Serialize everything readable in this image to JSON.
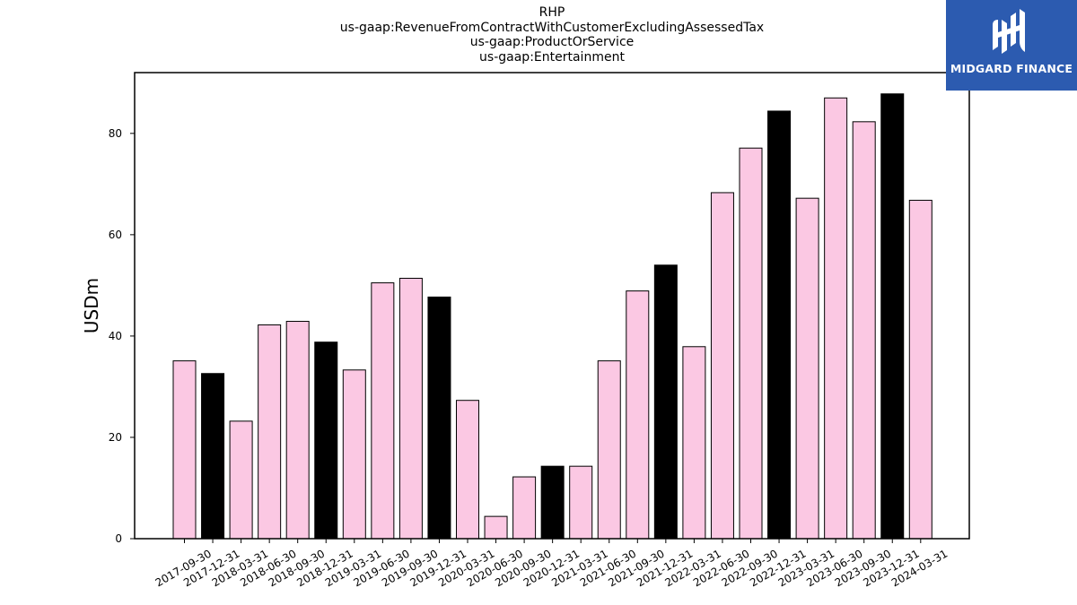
{
  "header": {
    "title_lines": [
      "RHP",
      "us-gaap:RevenueFromContractWithCustomerExcludingAssessedTax",
      "us-gaap:ProductOrService",
      "us-gaap:Entertainment"
    ]
  },
  "logo": {
    "text": "MIDGARD FINANCE",
    "bg_color": "#2c5bb0"
  },
  "chart_data": {
    "type": "bar",
    "title": "RHP\nus-gaap:RevenueFromContractWithCustomerExcludingAssessedTax\nus-gaap:ProductOrService\nus-gaap:Entertainment",
    "ylabel": "USDm",
    "xlabel": "",
    "ylim": [
      0,
      92
    ],
    "yticks": [
      0,
      20,
      40,
      60,
      80
    ],
    "grid": false,
    "categories": [
      "2017-09-30",
      "2017-12-31",
      "2018-03-31",
      "2018-06-30",
      "2018-09-30",
      "2018-12-31",
      "2019-03-31",
      "2019-06-30",
      "2019-09-30",
      "2019-12-31",
      "2020-03-31",
      "2020-06-30",
      "2020-09-30",
      "2020-12-31",
      "2021-03-31",
      "2021-06-30",
      "2021-09-30",
      "2021-12-31",
      "2022-03-31",
      "2022-06-30",
      "2022-09-30",
      "2022-12-31",
      "2023-03-31",
      "2023-06-30",
      "2023-09-30",
      "2023-12-31",
      "2024-03-31"
    ],
    "values": [
      35.1,
      32.6,
      23.2,
      42.2,
      42.9,
      38.8,
      33.3,
      50.5,
      51.4,
      47.7,
      27.3,
      4.4,
      12.2,
      14.3,
      14.3,
      35.1,
      48.9,
      54.0,
      37.9,
      68.3,
      77.1,
      84.4,
      67.2,
      87.0,
      82.3,
      87.8,
      66.8
    ],
    "bar_colors": [
      "#fbc8e3",
      "#000000",
      "#fbc8e3",
      "#fbc8e3",
      "#fbc8e3",
      "#000000",
      "#fbc8e3",
      "#fbc8e3",
      "#fbc8e3",
      "#000000",
      "#fbc8e3",
      "#fbc8e3",
      "#fbc8e3",
      "#000000",
      "#fbc8e3",
      "#fbc8e3",
      "#fbc8e3",
      "#000000",
      "#fbc8e3",
      "#fbc8e3",
      "#fbc8e3",
      "#000000",
      "#fbc8e3",
      "#fbc8e3",
      "#fbc8e3",
      "#000000",
      "#fbc8e3"
    ]
  }
}
